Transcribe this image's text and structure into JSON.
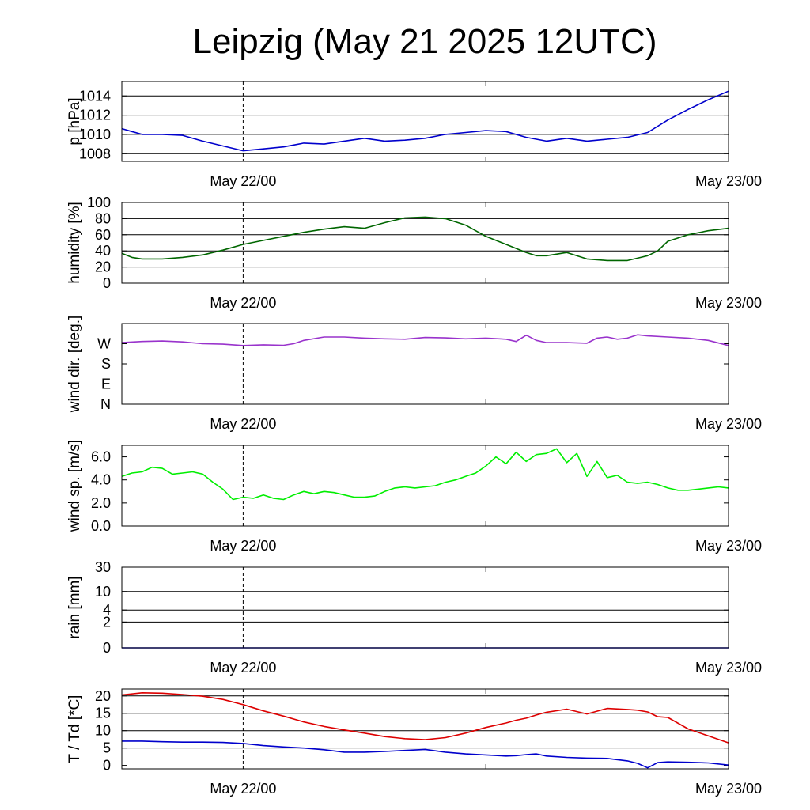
{
  "title": "Leipzig (May 21 2025 12UTC)",
  "x_tick_labels": [
    "May 22/00",
    "May 23/00"
  ],
  "chart_data": [
    {
      "id": "pressure",
      "type": "line",
      "ylabel": "p [hPa]",
      "ylim": [
        1007.2,
        1015.5
      ],
      "yticks": [
        1008,
        1010,
        1012,
        1014
      ],
      "ytick_labels": [
        "1008",
        "1010",
        "1012",
        "1014"
      ],
      "grid_values": [
        1008,
        1010,
        1012,
        1014
      ],
      "x_hours": [
        0,
        1,
        2,
        4,
        6,
        8,
        10,
        12,
        14,
        16,
        18,
        20,
        22,
        24,
        26,
        28,
        30,
        32,
        34,
        36,
        38,
        40,
        42,
        44,
        46,
        48,
        50,
        52,
        54,
        56,
        58,
        60
      ],
      "series": [
        {
          "color": "#0000cc",
          "values": [
            1010.6,
            1010.3,
            1010.0,
            1010.0,
            1009.9,
            1009.3,
            1008.8,
            1008.3,
            1008.5,
            1008.7,
            1009.1,
            1009.0,
            1009.3,
            1009.6,
            1009.3,
            1009.4,
            1009.6,
            1010.0,
            1010.2,
            1010.4,
            1010.3,
            1009.7,
            1009.3,
            1009.6,
            1009.3,
            1009.5,
            1009.7,
            1010.2,
            1011.5,
            1012.6,
            1013.6,
            1014.5
          ]
        }
      ]
    },
    {
      "id": "humidity",
      "type": "line",
      "ylabel": "humidity [%]",
      "ylim": [
        0,
        100
      ],
      "yticks": [
        0,
        20,
        40,
        60,
        80,
        100
      ],
      "ytick_labels": [
        "0",
        "20",
        "40",
        "60",
        "80",
        "100"
      ],
      "grid_values": [
        20,
        40,
        60,
        80
      ],
      "x_hours": [
        0,
        1,
        2,
        4,
        6,
        8,
        10,
        12,
        14,
        16,
        18,
        20,
        22,
        24,
        26,
        28,
        30,
        32,
        34,
        36,
        38,
        40,
        41,
        42,
        44,
        46,
        48,
        50,
        51,
        52,
        53,
        54,
        56,
        58,
        60
      ],
      "series": [
        {
          "color": "#006600",
          "values": [
            37,
            32,
            30,
            30,
            32,
            35,
            41,
            48,
            53,
            58,
            63,
            67,
            70,
            68,
            75,
            81,
            82,
            80,
            72,
            58,
            48,
            38,
            34,
            34,
            38,
            30,
            28,
            28,
            31,
            34,
            40,
            52,
            60,
            65,
            68
          ]
        }
      ]
    },
    {
      "id": "wind_direction",
      "type": "line",
      "ylabel": "wind dir. [deg.]",
      "ylim": [
        0,
        360
      ],
      "yticks": [
        0,
        90,
        180,
        270
      ],
      "ytick_labels": [
        "N",
        "E",
        "S",
        "W"
      ],
      "grid_values": [],
      "x_hours": [
        0,
        2,
        4,
        6,
        8,
        10,
        12,
        14,
        16,
        17,
        18,
        20,
        22,
        24,
        26,
        28,
        30,
        32,
        34,
        36,
        38,
        39,
        40,
        41,
        42,
        44,
        46,
        47,
        48,
        49,
        50,
        51,
        52,
        54,
        56,
        58,
        60
      ],
      "series": [
        {
          "color": "#9933cc",
          "values": [
            275,
            280,
            282,
            278,
            270,
            268,
            262,
            265,
            263,
            270,
            285,
            300,
            300,
            295,
            292,
            290,
            298,
            296,
            292,
            295,
            290,
            280,
            308,
            285,
            275,
            275,
            272,
            295,
            300,
            290,
            295,
            310,
            305,
            300,
            295,
            285,
            262
          ]
        }
      ]
    },
    {
      "id": "wind_speed",
      "type": "line",
      "ylabel": "wind sp. [m/s]",
      "ylim": [
        0,
        7.0
      ],
      "yticks": [
        0,
        2,
        4,
        6
      ],
      "ytick_labels": [
        "0.0",
        "2.0",
        "4.0",
        "6.0"
      ],
      "grid_values": [],
      "x_hours": [
        0,
        1,
        2,
        3,
        4,
        5,
        6,
        7,
        8,
        9,
        10,
        11,
        12,
        13,
        14,
        15,
        16,
        17,
        18,
        19,
        20,
        21,
        22,
        23,
        24,
        25,
        26,
        27,
        28,
        29,
        30,
        31,
        32,
        33,
        34,
        35,
        36,
        37,
        38,
        39,
        40,
        41,
        42,
        43,
        44,
        45,
        46,
        47,
        48,
        49,
        50,
        51,
        52,
        53,
        54,
        55,
        56,
        57,
        58,
        59,
        60
      ],
      "series": [
        {
          "color": "#00ee00",
          "values": [
            4.3,
            4.6,
            4.7,
            5.1,
            5.0,
            4.5,
            4.6,
            4.7,
            4.5,
            3.8,
            3.2,
            2.3,
            2.5,
            2.4,
            2.7,
            2.4,
            2.3,
            2.7,
            3.0,
            2.8,
            3.0,
            2.9,
            2.7,
            2.5,
            2.5,
            2.6,
            3.0,
            3.3,
            3.4,
            3.3,
            3.4,
            3.5,
            3.8,
            4.0,
            4.3,
            4.6,
            5.2,
            6.0,
            5.4,
            6.4,
            5.6,
            6.2,
            6.3,
            6.7,
            5.5,
            6.3,
            4.3,
            5.6,
            4.2,
            4.4,
            3.8,
            3.7,
            3.8,
            3.6,
            3.3,
            3.1,
            3.1,
            3.2,
            3.3,
            3.4,
            3.3
          ]
        }
      ]
    },
    {
      "id": "rain",
      "type": "line",
      "ylabel": "rain [mm]",
      "ylim": [
        0,
        30
      ],
      "yscale": "log1p",
      "yticks": [
        0,
        2,
        4,
        10,
        30
      ],
      "ytick_labels": [
        "0",
        "2",
        "4",
        "10",
        "30"
      ],
      "grid_values": [
        2,
        4,
        10,
        30
      ],
      "x_hours": [
        0,
        60
      ],
      "series": [
        {
          "color": "#0000cc",
          "values": [
            0,
            0
          ]
        }
      ]
    },
    {
      "id": "temperature",
      "type": "line",
      "ylabel": "T / Td [*C]",
      "ylim": [
        -1,
        22
      ],
      "yticks": [
        0,
        5,
        10,
        15,
        20
      ],
      "ytick_labels": [
        "0",
        "5",
        "10",
        "15",
        "20"
      ],
      "grid_values": [
        5,
        10,
        15,
        20
      ],
      "x_hours": [
        0,
        2,
        4,
        6,
        8,
        10,
        12,
        14,
        16,
        18,
        20,
        22,
        24,
        26,
        28,
        30,
        32,
        34,
        36,
        38,
        39,
        40,
        41,
        42,
        44,
        46,
        48,
        50,
        51,
        52,
        53,
        54,
        56,
        58,
        60
      ],
      "series": [
        {
          "color": "#dd0000",
          "values": [
            20.3,
            20.9,
            20.8,
            20.4,
            19.9,
            19.0,
            17.5,
            15.7,
            14.2,
            12.5,
            11.2,
            10.2,
            9.3,
            8.3,
            7.7,
            7.4,
            8.0,
            9.3,
            10.9,
            12.2,
            13.0,
            13.6,
            14.5,
            15.3,
            16.2,
            14.8,
            16.4,
            16.1,
            15.9,
            15.4,
            14.0,
            13.8,
            10.5,
            8.5,
            6.5
          ]
        },
        {
          "color": "#0000cc",
          "values": [
            7.0,
            7.0,
            6.8,
            6.7,
            6.7,
            6.6,
            6.3,
            5.7,
            5.3,
            5.0,
            4.5,
            3.8,
            3.8,
            4.0,
            4.3,
            4.6,
            3.8,
            3.3,
            3.0,
            2.7,
            2.8,
            3.1,
            3.3,
            2.7,
            2.3,
            2.1,
            2.0,
            1.3,
            0.6,
            -0.7,
            0.8,
            1.0,
            0.9,
            0.7,
            0.1
          ]
        }
      ]
    }
  ]
}
